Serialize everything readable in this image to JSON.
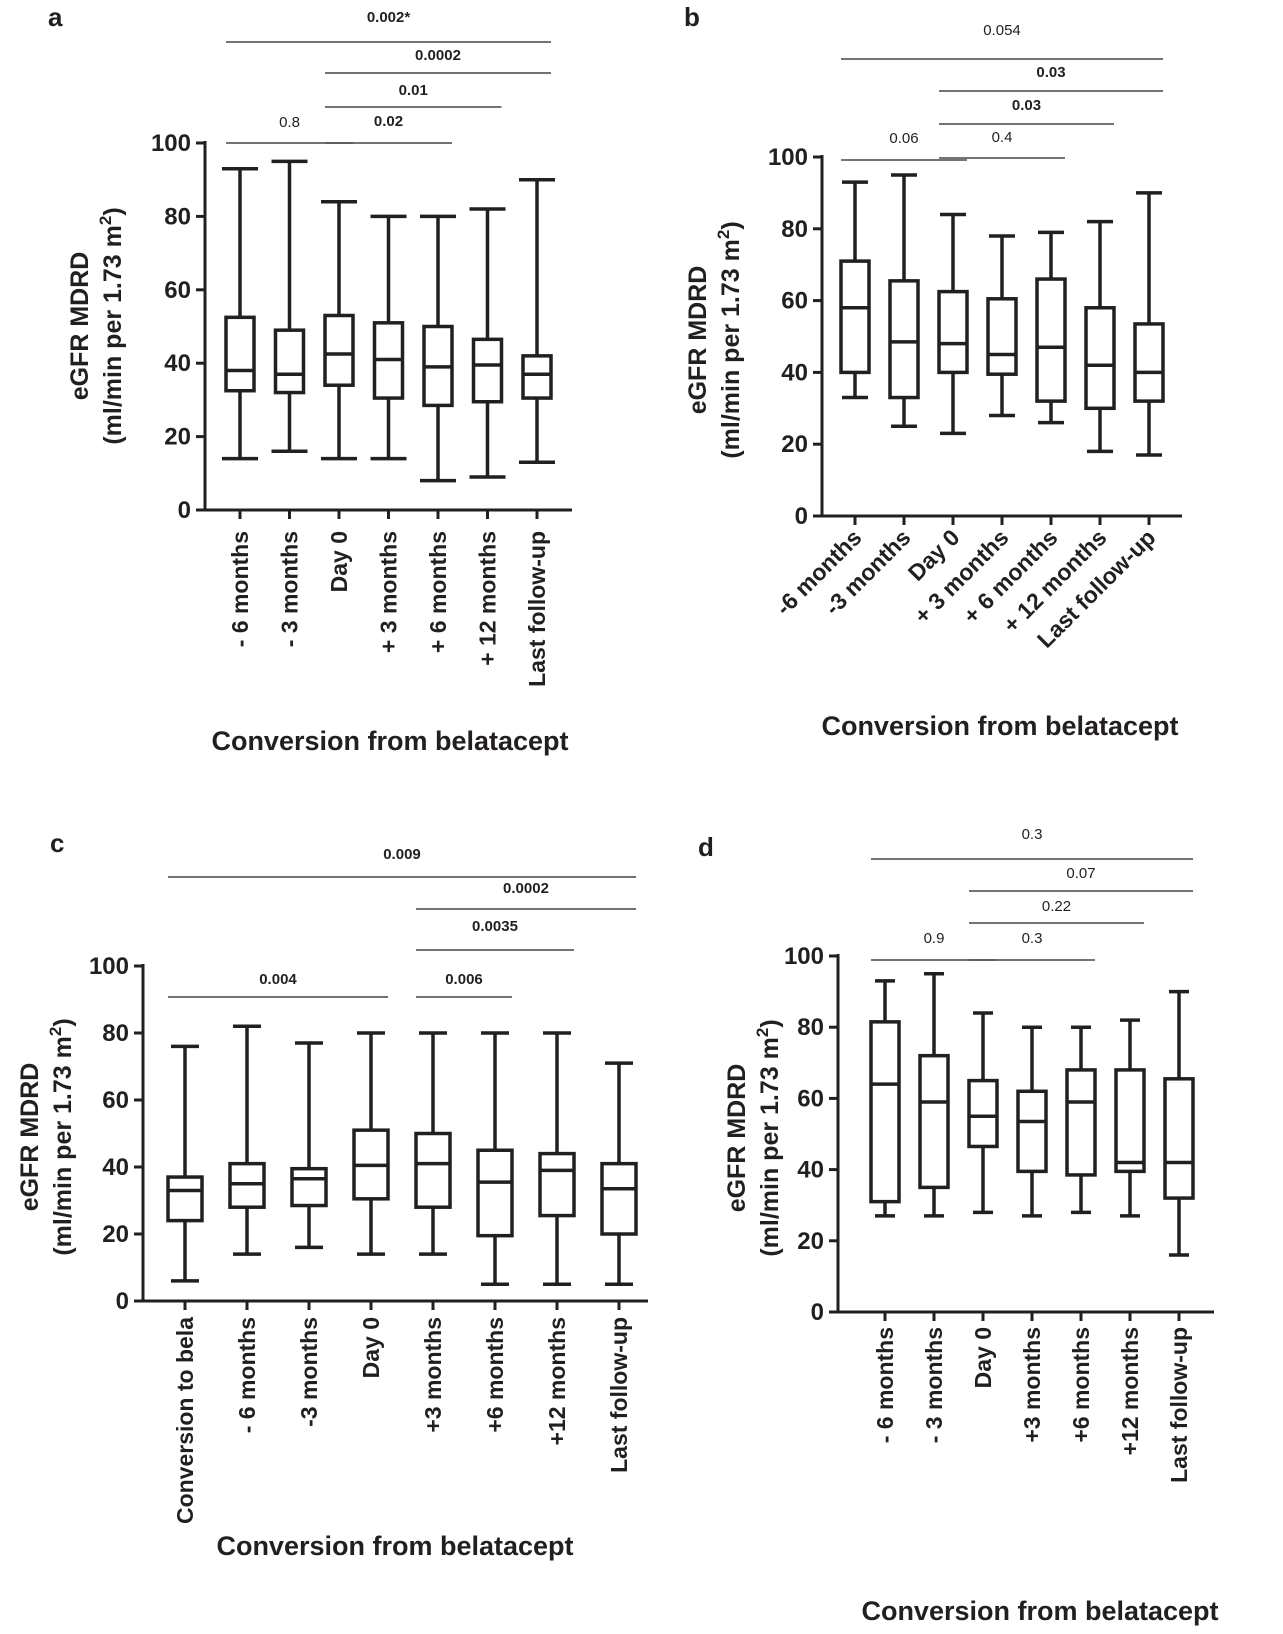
{
  "chart_data": [
    {
      "panel": "a",
      "type": "box",
      "ylabel_line1": "eGFR MDRD",
      "ylabel_line2": "(ml/min per 1.73 m",
      "ylabel_sup": "2",
      "ylabel_close": ")",
      "xlabel": "Conversion from belatacept",
      "ylim": [
        0,
        100
      ],
      "yticks": [
        "0",
        "20",
        "40",
        "60",
        "80",
        "100"
      ],
      "categories": [
        "- 6 months",
        "- 3 months",
        "Day 0",
        "+ 3 months",
        "+ 6 months",
        "+ 12 months",
        "Last follow-up"
      ],
      "boxes": [
        {
          "min": 14,
          "q1": 32.5,
          "median": 38,
          "q3": 52.5,
          "max": 93
        },
        {
          "min": 16,
          "q1": 32,
          "median": 37,
          "q3": 49,
          "max": 95
        },
        {
          "min": 14,
          "q1": 34,
          "median": 42.5,
          "q3": 53,
          "max": 84
        },
        {
          "min": 14,
          "q1": 30.5,
          "median": 41,
          "q3": 51,
          "max": 80
        },
        {
          "min": 8,
          "q1": 28.5,
          "median": 39,
          "q3": 50,
          "max": 80
        },
        {
          "min": 9,
          "q1": 29.5,
          "median": 39.5,
          "q3": 46.5,
          "max": 82
        },
        {
          "min": 13,
          "q1": 30.5,
          "median": 37,
          "q3": 42,
          "max": 90
        }
      ],
      "comparisons": [
        {
          "from": 0,
          "to": 6,
          "label": "0.002*",
          "bold": true
        },
        {
          "from": 2,
          "to": 6,
          "label": "0.0002",
          "bold": true
        },
        {
          "from": 2,
          "to": 5,
          "label": "0.01",
          "bold": true
        },
        {
          "from": 0,
          "to": 2,
          "label": "0.8",
          "bold": false
        },
        {
          "from": 2,
          "to": 4,
          "label": "0.02",
          "bold": true
        }
      ]
    },
    {
      "panel": "b",
      "type": "box",
      "ylabel_line1": "eGFR MDRD",
      "ylabel_line2": "(ml/min per 1.73 m",
      "ylabel_sup": "2",
      "ylabel_close": ")",
      "xlabel": "Conversion from belatacept",
      "ylim": [
        0,
        100
      ],
      "yticks": [
        "0",
        "20",
        "40",
        "60",
        "80",
        "100"
      ],
      "categories": [
        "-6 months",
        "-3 months",
        "Day 0",
        "+ 3 months",
        "+ 6 months",
        "+ 12 months",
        "Last follow-up"
      ],
      "boxes": [
        {
          "min": 33,
          "q1": 40,
          "median": 58,
          "q3": 71,
          "max": 93
        },
        {
          "min": 25,
          "q1": 33,
          "median": 48.5,
          "q3": 65.5,
          "max": 95
        },
        {
          "min": 23,
          "q1": 40,
          "median": 48,
          "q3": 62.5,
          "max": 84
        },
        {
          "min": 28,
          "q1": 39.5,
          "median": 45,
          "q3": 60.5,
          "max": 78
        },
        {
          "min": 26,
          "q1": 32,
          "median": 47,
          "q3": 66,
          "max": 79
        },
        {
          "min": 18,
          "q1": 30,
          "median": 42,
          "q3": 58,
          "max": 82
        },
        {
          "min": 17,
          "q1": 32,
          "median": 40,
          "q3": 53.5,
          "max": 90
        }
      ],
      "comparisons": [
        {
          "from": 0,
          "to": 6,
          "label": "0.054",
          "bold": false
        },
        {
          "from": 2,
          "to": 6,
          "label": "0.03",
          "bold": true
        },
        {
          "from": 2,
          "to": 5,
          "label": "0.03",
          "bold": true
        },
        {
          "from": 0,
          "to": 2,
          "label": "0.06",
          "bold": false
        },
        {
          "from": 2,
          "to": 4,
          "label": "0.4",
          "bold": false
        }
      ]
    },
    {
      "panel": "c",
      "type": "box",
      "ylabel_line1": "eGFR MDRD",
      "ylabel_line2": "(ml/min per 1.73 m",
      "ylabel_sup": "2",
      "ylabel_close": ")",
      "xlabel": "Conversion from belatacept",
      "ylim": [
        0,
        100
      ],
      "yticks": [
        "0",
        "20",
        "40",
        "60",
        "80",
        "100"
      ],
      "categories": [
        "Conversion to bela",
        "- 6 months",
        "-3 months",
        "Day 0",
        "+3 months",
        "+6 months",
        "+12 months",
        "Last follow-up"
      ],
      "boxes": [
        {
          "min": 6,
          "q1": 24,
          "median": 33,
          "q3": 37,
          "max": 76
        },
        {
          "min": 14,
          "q1": 28,
          "median": 35,
          "q3": 41,
          "max": 82
        },
        {
          "min": 16,
          "q1": 28.5,
          "median": 36.5,
          "q3": 39.5,
          "max": 77
        },
        {
          "min": 14,
          "q1": 30.5,
          "median": 40.5,
          "q3": 51,
          "max": 80
        },
        {
          "min": 14,
          "q1": 28,
          "median": 41,
          "q3": 50,
          "max": 80
        },
        {
          "min": 5,
          "q1": 19.5,
          "median": 35.5,
          "q3": 45,
          "max": 80
        },
        {
          "min": 5,
          "q1": 25.5,
          "median": 39,
          "q3": 44,
          "max": 80
        },
        {
          "min": 5,
          "q1": 20,
          "median": 33.5,
          "q3": 41,
          "max": 71
        }
      ],
      "comparisons": [
        {
          "from": 0,
          "to": 7,
          "label": "0.009",
          "bold": true
        },
        {
          "from": 4,
          "to": 7,
          "label": "0.0002",
          "bold": true
        },
        {
          "from": 4,
          "to": 6,
          "label": "0.0035",
          "bold": true
        },
        {
          "from": 0,
          "to": 3,
          "label": "0.004",
          "bold": true
        },
        {
          "from": 4,
          "to": 5,
          "label": "0.006",
          "bold": true
        }
      ]
    },
    {
      "panel": "d",
      "type": "box",
      "ylabel_line1": "eGFR MDRD",
      "ylabel_line2": "(ml/min per 1.73 m",
      "ylabel_sup": "2",
      "ylabel_close": ")",
      "xlabel": "Conversion from belatacept",
      "ylim": [
        0,
        100
      ],
      "yticks": [
        "0",
        "20",
        "40",
        "60",
        "80",
        "100"
      ],
      "categories": [
        "- 6 months",
        "- 3 months",
        "Day 0",
        "+3 months",
        "+6 months",
        "+12 months",
        "Last follow-up"
      ],
      "boxes": [
        {
          "min": 27,
          "q1": 31,
          "median": 64,
          "q3": 81.5,
          "max": 93
        },
        {
          "min": 27,
          "q1": 35,
          "median": 59,
          "q3": 72,
          "max": 95
        },
        {
          "min": 28,
          "q1": 46.5,
          "median": 55,
          "q3": 65,
          "max": 84
        },
        {
          "min": 27,
          "q1": 39.5,
          "median": 53.5,
          "q3": 62,
          "max": 80
        },
        {
          "min": 28,
          "q1": 38.5,
          "median": 59,
          "q3": 68,
          "max": 80
        },
        {
          "min": 27,
          "q1": 39.5,
          "median": 42,
          "q3": 68,
          "max": 82
        },
        {
          "min": 16,
          "q1": 32,
          "median": 42,
          "q3": 65.5,
          "max": 90
        }
      ],
      "comparisons": [
        {
          "from": 0,
          "to": 6,
          "label": "0.3",
          "bold": false
        },
        {
          "from": 2,
          "to": 6,
          "label": "0.07",
          "bold": false
        },
        {
          "from": 2,
          "to": 5,
          "label": "0.22",
          "bold": false
        },
        {
          "from": 0,
          "to": 2,
          "label": "0.9",
          "bold": false
        },
        {
          "from": 2,
          "to": 4,
          "label": "0.3",
          "bold": false
        }
      ]
    }
  ]
}
